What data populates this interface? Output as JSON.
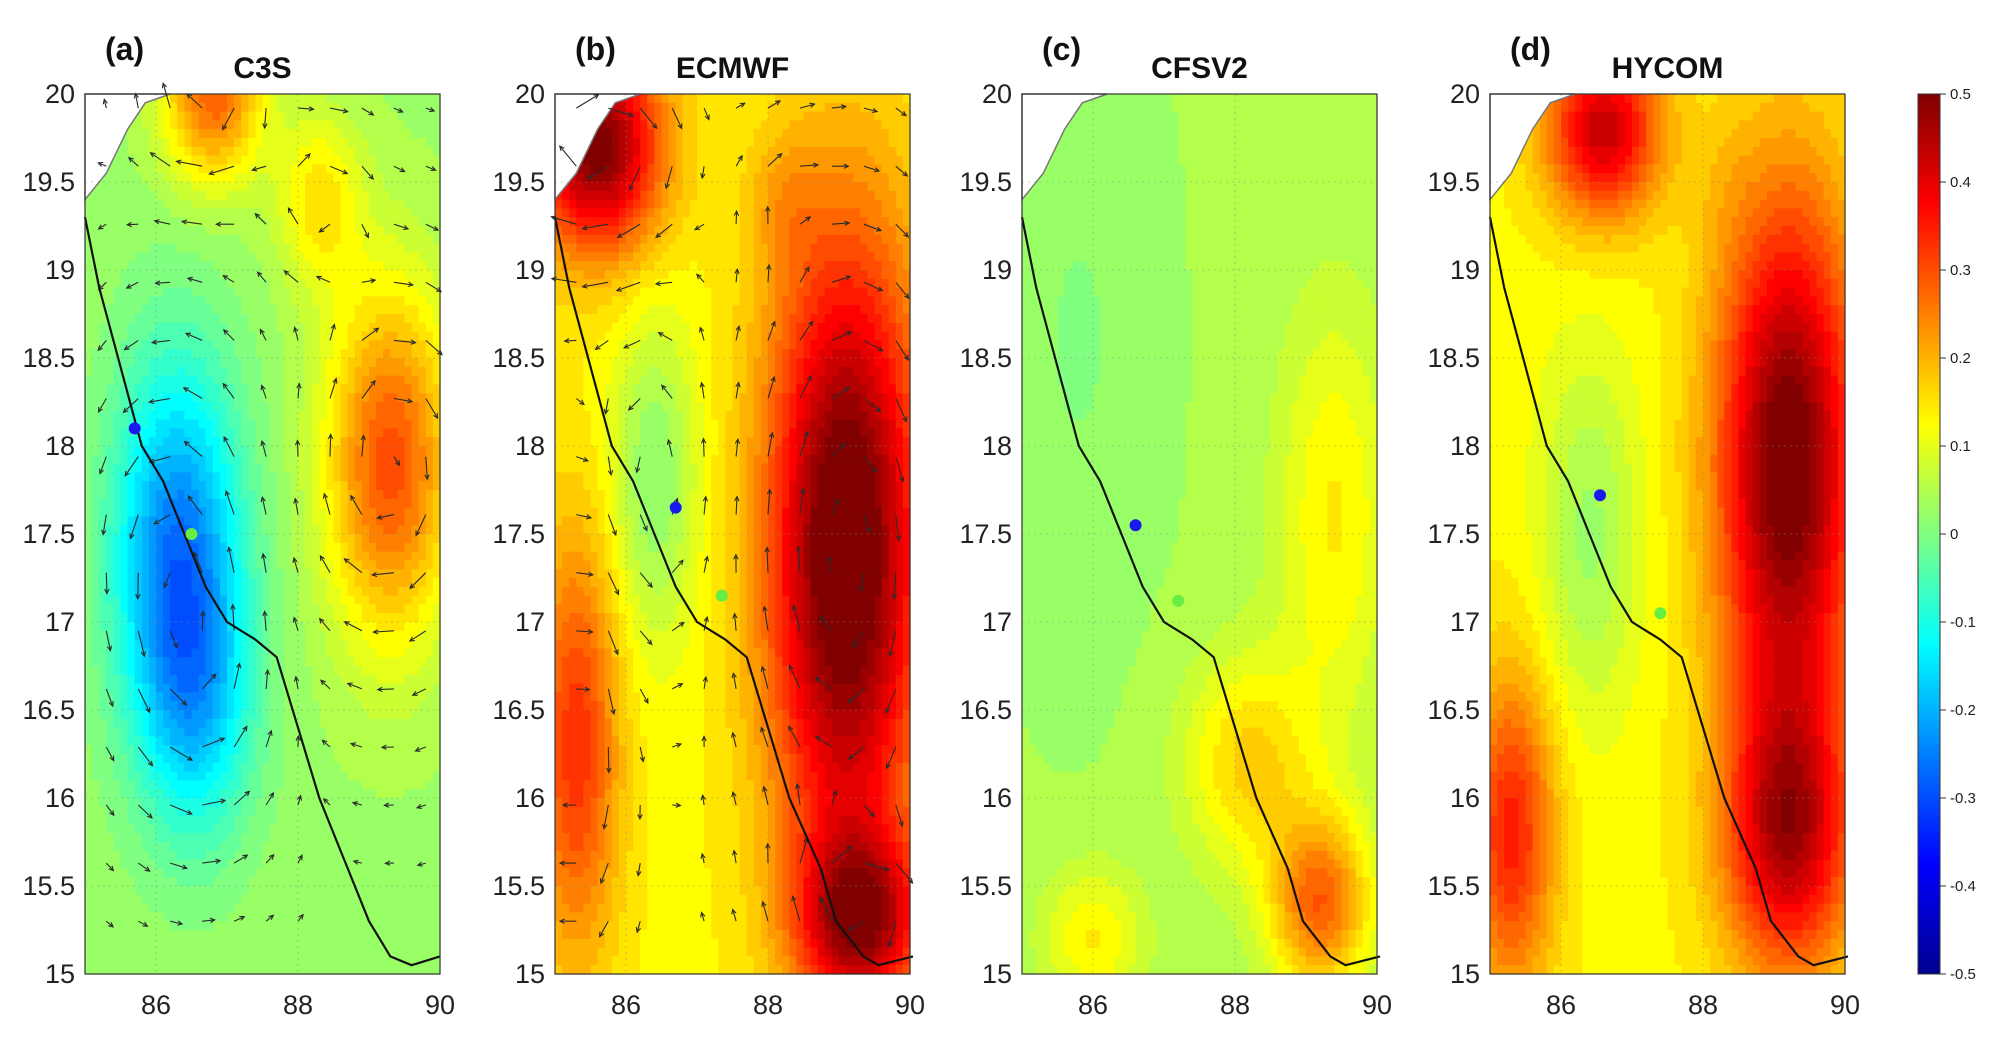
{
  "chart_data": [
    {
      "type": "heatmap",
      "panel_label": "(a)",
      "title": "C3S",
      "x_ticks": [
        "86",
        "88",
        "90"
      ],
      "y_ticks": [
        "20",
        "19.5",
        "19",
        "18.5",
        "18",
        "17.5",
        "17",
        "16.5",
        "16",
        "15.5",
        "15"
      ],
      "xlim": [
        85,
        90
      ],
      "ylim": [
        15,
        20
      ],
      "field_features": [
        {
          "lon": 86.3,
          "lat": 17.4,
          "value": -0.28,
          "spread_lon": 0.9,
          "spread_lat": 1.1
        },
        {
          "lon": 86.6,
          "lat": 16.5,
          "value": -0.14,
          "spread_lon": 0.8,
          "spread_lat": 0.8
        },
        {
          "lon": 89.3,
          "lat": 17.9,
          "value": 0.27,
          "spread_lon": 0.9,
          "spread_lat": 1.0
        },
        {
          "lon": 86.8,
          "lat": 20.0,
          "value": 0.25,
          "spread_lon": 0.7,
          "spread_lat": 0.5
        },
        {
          "lon": 88.3,
          "lat": 19.4,
          "value": 0.12,
          "spread_lon": 0.6,
          "spread_lat": 0.5
        }
      ],
      "base_value": 0.03,
      "vectors": true,
      "markers": [
        {
          "lon": 85.7,
          "lat": 18.1,
          "color": "#1a1aee"
        },
        {
          "lon": 86.5,
          "lat": 17.5,
          "color": "#66ee44"
        }
      ]
    },
    {
      "type": "heatmap",
      "panel_label": "(b)",
      "title": "ECMWF",
      "x_ticks": [
        "86",
        "88",
        "90"
      ],
      "y_ticks": [
        "20",
        "19.5",
        "19",
        "18.5",
        "18",
        "17.5",
        "17",
        "16.5",
        "16",
        "15.5",
        "15"
      ],
      "xlim": [
        85,
        90
      ],
      "ylim": [
        15,
        20
      ],
      "field_features": [
        {
          "lon": 89.1,
          "lat": 17.4,
          "value": 0.43,
          "spread_lon": 1.1,
          "spread_lat": 1.8
        },
        {
          "lon": 85.6,
          "lat": 19.7,
          "value": 0.38,
          "spread_lon": 0.9,
          "spread_lat": 0.6
        },
        {
          "lon": 86.4,
          "lat": 17.8,
          "value": -0.12,
          "spread_lon": 0.6,
          "spread_lat": 0.9
        },
        {
          "lon": 85.3,
          "lat": 16.3,
          "value": 0.2,
          "spread_lon": 0.6,
          "spread_lat": 1.2
        },
        {
          "lon": 89.3,
          "lat": 15.3,
          "value": 0.3,
          "spread_lon": 0.9,
          "spread_lat": 0.5
        },
        {
          "lon": 88.2,
          "lat": 19.4,
          "value": 0.05,
          "spread_lon": 0.5,
          "spread_lat": 0.4
        }
      ],
      "base_value": 0.13,
      "vectors": true,
      "markers": [
        {
          "lon": 86.7,
          "lat": 17.65,
          "color": "#1a1aee"
        },
        {
          "lon": 87.35,
          "lat": 17.15,
          "color": "#66ee44"
        }
      ]
    },
    {
      "type": "heatmap",
      "panel_label": "(c)",
      "title": "CFSV2",
      "x_ticks": [
        "86",
        "88",
        "90"
      ],
      "y_ticks": [
        "20",
        "19.5",
        "19",
        "18.5",
        "18",
        "17.5",
        "17",
        "16.5",
        "16",
        "15.5",
        "15"
      ],
      "xlim": [
        85,
        90
      ],
      "ylim": [
        15,
        20
      ],
      "field_features": [
        {
          "lon": 85.8,
          "lat": 18.6,
          "value": -0.03,
          "spread_lon": 1.0,
          "spread_lat": 1.6
        },
        {
          "lon": 89.2,
          "lat": 15.4,
          "value": 0.24,
          "spread_lon": 0.7,
          "spread_lat": 0.5
        },
        {
          "lon": 88.2,
          "lat": 16.2,
          "value": 0.13,
          "spread_lon": 0.9,
          "spread_lat": 0.6
        },
        {
          "lon": 89.4,
          "lat": 17.6,
          "value": 0.1,
          "spread_lon": 0.8,
          "spread_lat": 1.2
        },
        {
          "lon": 86.0,
          "lat": 15.2,
          "value": 0.1,
          "spread_lon": 0.7,
          "spread_lat": 0.4
        }
      ],
      "base_value": 0.04,
      "vectors": false,
      "markers": [
        {
          "lon": 86.6,
          "lat": 17.55,
          "color": "#1a1aee"
        },
        {
          "lon": 87.2,
          "lat": 17.12,
          "color": "#66ee44"
        }
      ]
    },
    {
      "type": "heatmap",
      "panel_label": "(d)",
      "title": "HYCOM",
      "x_ticks": [
        "86",
        "88",
        "90"
      ],
      "y_ticks": [
        "20",
        "19.5",
        "19",
        "18.5",
        "18",
        "17.5",
        "17",
        "16.5",
        "16",
        "15.5",
        "15"
      ],
      "xlim": [
        85,
        90
      ],
      "ylim": [
        15,
        20
      ],
      "field_features": [
        {
          "lon": 89.2,
          "lat": 17.9,
          "value": 0.4,
          "spread_lon": 1.0,
          "spread_lat": 1.5
        },
        {
          "lon": 89.2,
          "lat": 15.8,
          "value": 0.3,
          "spread_lon": 0.9,
          "spread_lat": 0.8
        },
        {
          "lon": 86.4,
          "lat": 17.5,
          "value": -0.1,
          "spread_lon": 0.7,
          "spread_lat": 1.0
        },
        {
          "lon": 86.6,
          "lat": 19.8,
          "value": 0.3,
          "spread_lon": 0.8,
          "spread_lat": 0.5
        },
        {
          "lon": 85.3,
          "lat": 15.8,
          "value": 0.22,
          "spread_lon": 0.6,
          "spread_lat": 0.9
        },
        {
          "lon": 88.3,
          "lat": 19.5,
          "value": 0.02,
          "spread_lon": 0.4,
          "spread_lat": 0.4
        }
      ],
      "base_value": 0.13,
      "vectors": false,
      "markers": [
        {
          "lon": 86.55,
          "lat": 17.72,
          "color": "#1a1aee"
        },
        {
          "lon": 87.4,
          "lat": 17.05,
          "color": "#66ee44"
        }
      ]
    }
  ],
  "colorbar": {
    "range": [
      -0.5,
      0.5
    ],
    "ticks": [
      "0.5",
      "0.4",
      "0.3",
      "0.2",
      "0.1",
      "0",
      "-0.1",
      "-0.2",
      "-0.3",
      "-0.4",
      "-0.5"
    ],
    "colormap": "jet"
  },
  "track": {
    "description": "cyclone track",
    "points_lonlat": [
      [
        85.0,
        19.3
      ],
      [
        85.2,
        18.9
      ],
      [
        85.4,
        18.6
      ],
      [
        85.6,
        18.3
      ],
      [
        85.8,
        18.0
      ],
      [
        86.1,
        17.8
      ],
      [
        86.4,
        17.5
      ],
      [
        86.7,
        17.2
      ],
      [
        87.0,
        17.0
      ],
      [
        87.4,
        16.9
      ],
      [
        87.7,
        16.8
      ],
      [
        88.0,
        16.4
      ],
      [
        88.3,
        16.0
      ],
      [
        88.7,
        15.6
      ],
      [
        89.0,
        15.3
      ],
      [
        89.3,
        15.1
      ],
      [
        89.6,
        15.05
      ],
      [
        90.0,
        15.1
      ]
    ]
  },
  "coastline": {
    "points_lonlat": [
      [
        85.0,
        19.4
      ],
      [
        85.3,
        19.55
      ],
      [
        85.6,
        19.8
      ],
      [
        85.85,
        19.95
      ],
      [
        86.2,
        20.0
      ]
    ]
  }
}
